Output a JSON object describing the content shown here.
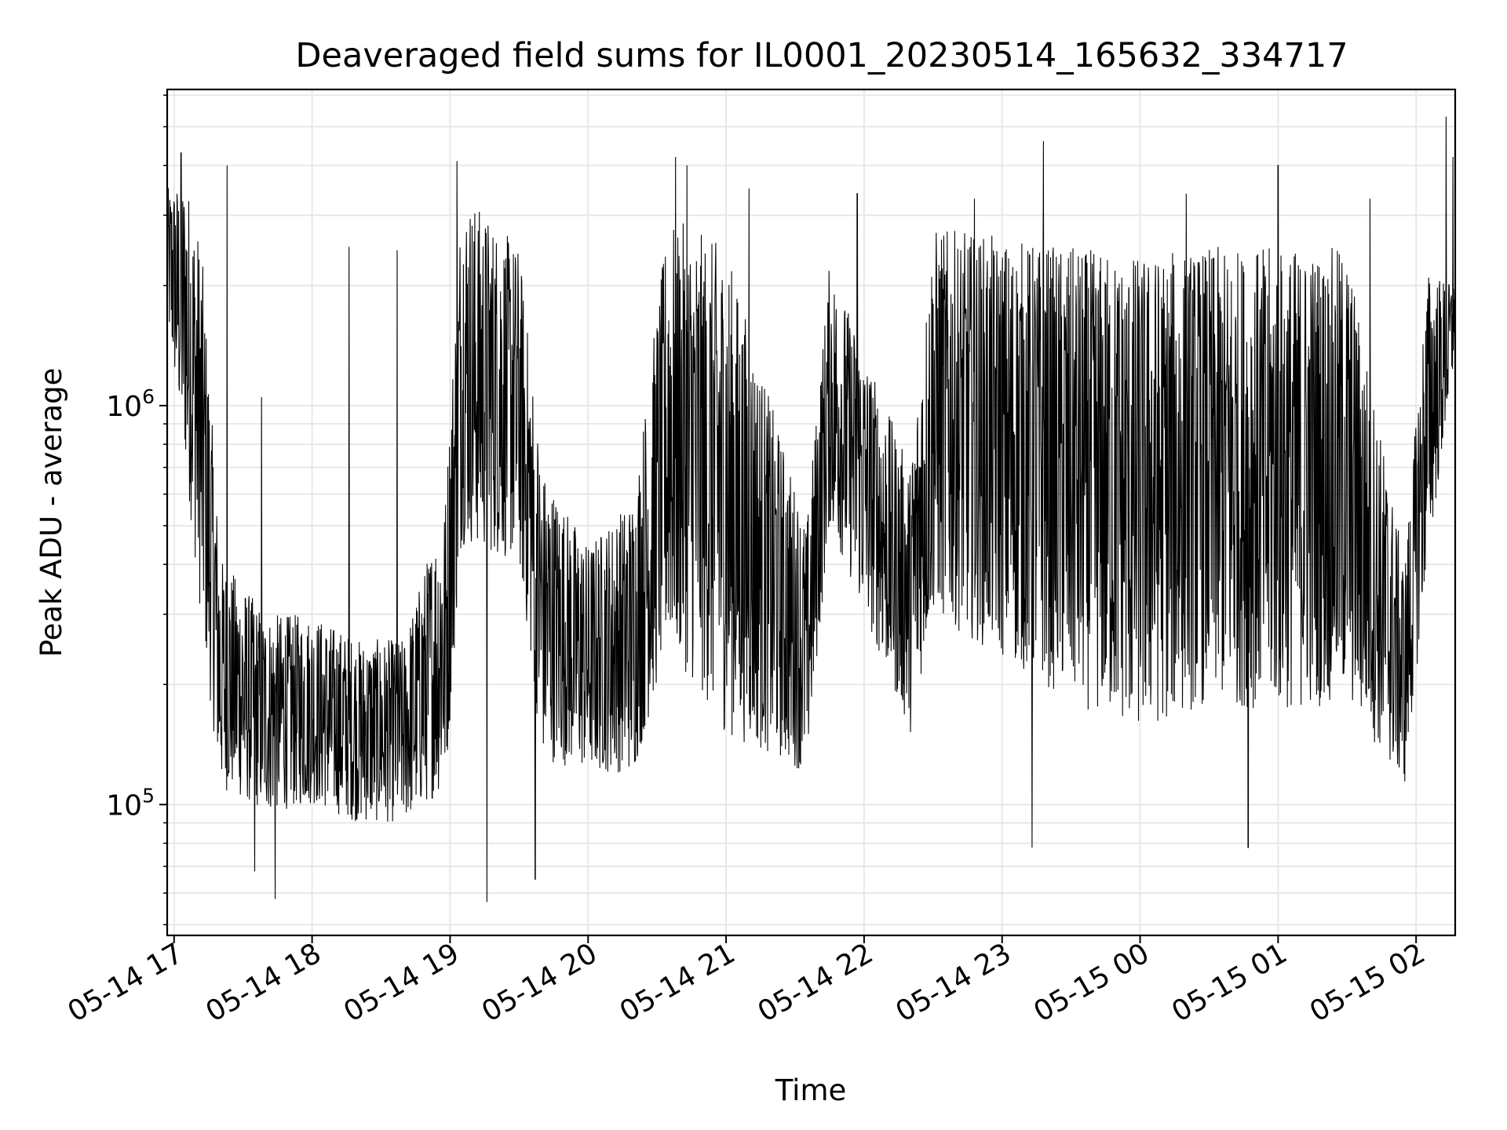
{
  "chart_data": {
    "type": "line",
    "title": "Deaveraged field sums for IL0001_20230514_165632_334717",
    "xlabel": "Time",
    "ylabel": "Peak ADU - average",
    "yscale": "log",
    "ylim": [
      47000,
      6200000
    ],
    "xlim": [
      "2023-05-14 16:57",
      "2023-05-15 02:17"
    ],
    "grid": true,
    "line_color": "#000000",
    "grid_color": "#e6e6e6",
    "x_ticks": [
      {
        "time": "2023-05-14 17:00",
        "label": "05-14 17"
      },
      {
        "time": "2023-05-14 18:00",
        "label": "05-14 18"
      },
      {
        "time": "2023-05-14 19:00",
        "label": "05-14 19"
      },
      {
        "time": "2023-05-14 20:00",
        "label": "05-14 20"
      },
      {
        "time": "2023-05-14 21:00",
        "label": "05-14 21"
      },
      {
        "time": "2023-05-14 22:00",
        "label": "05-14 22"
      },
      {
        "time": "2023-05-14 23:00",
        "label": "05-14 23"
      },
      {
        "time": "2023-05-15 00:00",
        "label": "05-15 00"
      },
      {
        "time": "2023-05-15 01:00",
        "label": "05-15 01"
      },
      {
        "time": "2023-05-15 02:00",
        "label": "05-15 02"
      }
    ],
    "y_ticks": [
      {
        "value": 100000,
        "base": "10",
        "exp": "5"
      },
      {
        "value": 1000000,
        "base": "10",
        "exp": "6"
      }
    ],
    "series": [
      {
        "envelope": [
          {
            "time": "2023-05-14 16:57",
            "low": 1600000,
            "high": 3500000
          },
          {
            "time": "2023-05-14 17:05",
            "low": 700000,
            "high": 3800000
          },
          {
            "time": "2023-05-14 17:12",
            "low": 280000,
            "high": 2500000
          },
          {
            "time": "2023-05-14 17:20",
            "low": 110000,
            "high": 420000
          },
          {
            "time": "2023-05-14 17:40",
            "low": 95000,
            "high": 300000
          },
          {
            "time": "2023-05-14 18:00",
            "low": 100000,
            "high": 300000
          },
          {
            "time": "2023-05-14 18:20",
            "low": 90000,
            "high": 260000
          },
          {
            "time": "2023-05-14 18:40",
            "low": 90000,
            "high": 260000
          },
          {
            "time": "2023-05-14 18:58",
            "low": 110000,
            "high": 600000
          },
          {
            "time": "2023-05-14 19:05",
            "low": 450000,
            "high": 3500000
          },
          {
            "time": "2023-05-14 19:30",
            "low": 400000,
            "high": 2500000
          },
          {
            "time": "2023-05-14 19:40",
            "low": 130000,
            "high": 700000
          },
          {
            "time": "2023-05-14 20:00",
            "low": 120000,
            "high": 450000
          },
          {
            "time": "2023-05-14 20:20",
            "low": 120000,
            "high": 600000
          },
          {
            "time": "2023-05-14 20:35",
            "low": 250000,
            "high": 3000000
          },
          {
            "time": "2023-05-14 21:00",
            "low": 150000,
            "high": 2500000
          },
          {
            "time": "2023-05-14 21:35",
            "low": 120000,
            "high": 500000
          },
          {
            "time": "2023-05-14 21:45",
            "low": 500000,
            "high": 2300000
          },
          {
            "time": "2023-05-14 22:20",
            "low": 150000,
            "high": 700000
          },
          {
            "time": "2023-05-14 22:30",
            "low": 300000,
            "high": 2800000
          },
          {
            "time": "2023-05-14 23:30",
            "low": 180000,
            "high": 2500000
          },
          {
            "time": "2023-05-15 00:00",
            "low": 150000,
            "high": 2400000
          },
          {
            "time": "2023-05-15 00:30",
            "low": 180000,
            "high": 2500000
          },
          {
            "time": "2023-05-15 01:00",
            "low": 170000,
            "high": 2500000
          },
          {
            "time": "2023-05-15 01:30",
            "low": 180000,
            "high": 2500000
          },
          {
            "time": "2023-05-15 01:55",
            "low": 110000,
            "high": 400000
          },
          {
            "time": "2023-05-15 02:05",
            "low": 400000,
            "high": 2200000
          },
          {
            "time": "2023-05-15 02:17",
            "low": 1300000,
            "high": 2000000
          }
        ],
        "spikes": [
          {
            "time": "2023-05-14 17:03",
            "value": 4300000
          },
          {
            "time": "2023-05-14 17:23",
            "value": 4000000
          },
          {
            "time": "2023-05-14 17:35",
            "value": 68000
          },
          {
            "time": "2023-05-14 17:38",
            "value": 1050000
          },
          {
            "time": "2023-05-14 17:44",
            "value": 58000
          },
          {
            "time": "2023-05-14 18:16",
            "value": 2500000
          },
          {
            "time": "2023-05-14 18:37",
            "value": 2450000
          },
          {
            "time": "2023-05-14 19:03",
            "value": 4100000
          },
          {
            "time": "2023-05-14 19:16",
            "value": 57000
          },
          {
            "time": "2023-05-14 19:37",
            "value": 65000
          },
          {
            "time": "2023-05-14 20:38",
            "value": 4200000
          },
          {
            "time": "2023-05-14 20:43",
            "value": 4000000
          },
          {
            "time": "2023-05-14 21:10",
            "value": 3500000
          },
          {
            "time": "2023-05-14 21:57",
            "value": 3400000
          },
          {
            "time": "2023-05-14 22:48",
            "value": 3300000
          },
          {
            "time": "2023-05-14 23:13",
            "value": 78000
          },
          {
            "time": "2023-05-14 23:18",
            "value": 4600000
          },
          {
            "time": "2023-05-15 00:20",
            "value": 3400000
          },
          {
            "time": "2023-05-15 00:47",
            "value": 78000
          },
          {
            "time": "2023-05-15 01:00",
            "value": 4000000
          },
          {
            "time": "2023-05-15 01:40",
            "value": 3300000
          },
          {
            "time": "2023-05-15 02:13",
            "value": 5300000
          },
          {
            "time": "2023-05-15 02:16",
            "value": 4200000
          }
        ]
      }
    ]
  }
}
